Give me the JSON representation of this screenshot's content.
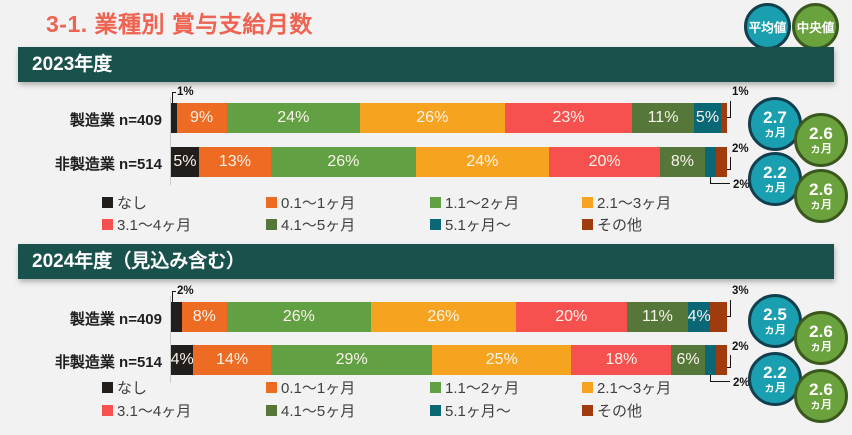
{
  "page": {
    "title": "3-1. 業種別 賞与支給月数",
    "unit": "ヵ月"
  },
  "badges": [
    {
      "label": "平均値"
    },
    {
      "label": "中央値"
    }
  ],
  "colors": {
    "title": "#ee6352",
    "header_bg": "#19514c",
    "page_bg": "#f2f2f2",
    "mean_fill": "#1a9fb0",
    "mean_border": "#123f4d",
    "median_fill": "#6aa23d",
    "median_border": "#3b581e",
    "axis_line": "#c8cac9",
    "callout_text": "#141414",
    "legend_text": "#3f3f3f"
  },
  "chart_data": [
    {
      "type": "bar",
      "stacked": true,
      "orientation": "horizontal",
      "title": "2023年度",
      "unit": "%",
      "xlim": [
        0,
        100
      ],
      "categories": [
        "製造業 n=409",
        "非製造業 n=514"
      ],
      "series": [
        {
          "name": "なし",
          "color": "#221e1b",
          "values": [
            1,
            5
          ]
        },
        {
          "name": "0.1〜1ヶ月",
          "color": "#ee6b23",
          "values": [
            9,
            13
          ]
        },
        {
          "name": "1.1〜2ヶ月",
          "color": "#62a143",
          "values": [
            24,
            26
          ]
        },
        {
          "name": "2.1〜3ヶ月",
          "color": "#f6a41f",
          "values": [
            26,
            24
          ]
        },
        {
          "name": "3.1〜4ヶ月",
          "color": "#f7514f",
          "values": [
            23,
            20
          ]
        },
        {
          "name": "4.1〜5ヶ月",
          "color": "#55783a",
          "values": [
            11,
            8
          ]
        },
        {
          "name": "5.1ヶ月〜",
          "color": "#0a6876",
          "values": [
            5,
            2
          ]
        },
        {
          "name": "その他",
          "color": "#a03b0e",
          "values": [
            1,
            2
          ]
        }
      ],
      "label_modes": [
        [
          "tl",
          "in",
          "in",
          "in",
          "in",
          "in",
          "in",
          "tr"
        ],
        [
          "in",
          "in",
          "in",
          "in",
          "in",
          "in",
          "br",
          "tr"
        ]
      ],
      "stats": {
        "mean_label": "平均値",
        "median_label": "中央値",
        "rows": [
          {
            "mean": "2.7",
            "median": "2.6"
          },
          {
            "mean": "2.2",
            "median": "2.6"
          }
        ]
      }
    },
    {
      "type": "bar",
      "stacked": true,
      "orientation": "horizontal",
      "title": "2024年度（見込み含む）",
      "unit": "%",
      "xlim": [
        0,
        100
      ],
      "categories": [
        "製造業 n=409",
        "非製造業 n=514"
      ],
      "series": [
        {
          "name": "なし",
          "color": "#221e1b",
          "values": [
            2,
            4
          ]
        },
        {
          "name": "0.1〜1ヶ月",
          "color": "#ee6b23",
          "values": [
            8,
            14
          ]
        },
        {
          "name": "1.1〜2ヶ月",
          "color": "#62a143",
          "values": [
            26,
            29
          ]
        },
        {
          "name": "2.1〜3ヶ月",
          "color": "#f6a41f",
          "values": [
            26,
            25
          ]
        },
        {
          "name": "3.1〜4ヶ月",
          "color": "#f7514f",
          "values": [
            20,
            18
          ]
        },
        {
          "name": "4.1〜5ヶ月",
          "color": "#55783a",
          "values": [
            11,
            6
          ]
        },
        {
          "name": "5.1ヶ月〜",
          "color": "#0a6876",
          "values": [
            4,
            2
          ]
        },
        {
          "name": "その他",
          "color": "#a03b0e",
          "values": [
            3,
            2
          ]
        }
      ],
      "label_modes": [
        [
          "tl",
          "in",
          "in",
          "in",
          "in",
          "in",
          "in",
          "tr"
        ],
        [
          "in",
          "in",
          "in",
          "in",
          "in",
          "in",
          "br",
          "tr"
        ]
      ],
      "stats": {
        "mean_label": "平均値",
        "median_label": "中央値",
        "rows": [
          {
            "mean": "2.5",
            "median": "2.6"
          },
          {
            "mean": "2.2",
            "median": "2.6"
          }
        ]
      }
    }
  ]
}
